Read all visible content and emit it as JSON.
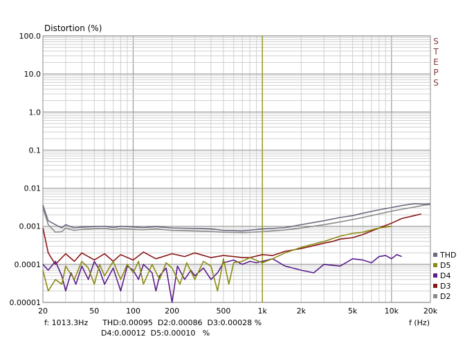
{
  "chart_data": {
    "type": "line",
    "ylabel": "Distortion (%)",
    "xlabel": "f (Hz)",
    "xscale": "log",
    "yscale": "log",
    "xlim": [
      20,
      20000
    ],
    "ylim": [
      1e-05,
      100
    ],
    "x_ticks": [
      {
        "v": 20,
        "label": "20"
      },
      {
        "v": 50,
        "label": "50"
      },
      {
        "v": 100,
        "label": "100"
      },
      {
        "v": 200,
        "label": "200"
      },
      {
        "v": 500,
        "label": "500"
      },
      {
        "v": 1000,
        "label": "1k"
      },
      {
        "v": 2000,
        "label": "2k"
      },
      {
        "v": 5000,
        "label": "5k"
      },
      {
        "v": 10000,
        "label": "10k"
      },
      {
        "v": 20000,
        "label": "20k"
      }
    ],
    "y_ticks": [
      {
        "v": 100,
        "label": "100.0"
      },
      {
        "v": 10,
        "label": "10.0"
      },
      {
        "v": 1,
        "label": "1.0"
      },
      {
        "v": 0.1,
        "label": "0.1"
      },
      {
        "v": 0.01,
        "label": "0.01"
      },
      {
        "v": 0.001,
        "label": "0.001"
      },
      {
        "v": 0.0001,
        "label": "0.0001"
      },
      {
        "v": 1e-05,
        "label": "0.00001"
      }
    ],
    "cursor_x": 1000,
    "cursor_color": "#9a9a20",
    "side_label": "STEPS",
    "series": [
      {
        "name": "THD",
        "color": "#6a6a80",
        "x": [
          20,
          22,
          25,
          28,
          30,
          35,
          40,
          50,
          60,
          70,
          80,
          100,
          120,
          150,
          200,
          300,
          400,
          500,
          700,
          1000,
          1500,
          2000,
          3000,
          4000,
          5000,
          6000,
          8000,
          10000,
          12000,
          15000,
          18000,
          20000
        ],
        "y": [
          0.0036,
          0.0014,
          0.0011,
          0.0009,
          0.0011,
          0.0009,
          0.00095,
          0.00098,
          0.001,
          0.00093,
          0.001,
          0.00096,
          0.00092,
          0.00098,
          0.0009,
          0.00088,
          0.00085,
          0.00078,
          0.00075,
          0.00085,
          0.00092,
          0.0011,
          0.0014,
          0.0017,
          0.0019,
          0.0022,
          0.0027,
          0.0031,
          0.0035,
          0.0039,
          0.0038,
          0.0039
        ]
      },
      {
        "name": "D5",
        "color": "#8a8a10",
        "x": [
          20,
          22,
          25,
          28,
          30,
          35,
          40,
          45,
          50,
          55,
          60,
          70,
          80,
          90,
          100,
          110,
          120,
          140,
          160,
          180,
          200,
          230,
          260,
          300,
          350,
          400,
          450,
          500,
          550,
          600,
          700,
          800,
          1000,
          1200,
          1500,
          2000,
          3000,
          4000,
          5000,
          6000,
          8000,
          10000
        ],
        "y": [
          7e-05,
          2e-05,
          4e-05,
          3e-05,
          9e-05,
          4e-05,
          0.00012,
          8e-05,
          3e-05,
          0.0001,
          5e-05,
          0.00012,
          4e-05,
          0.0001,
          6e-05,
          0.00012,
          3e-05,
          0.0001,
          4e-05,
          0.00011,
          8e-05,
          3e-05,
          0.00011,
          4e-05,
          0.00012,
          9e-05,
          2e-05,
          0.00014,
          3e-05,
          0.00011,
          0.00012,
          0.00015,
          0.00011,
          0.00014,
          0.0002,
          0.00028,
          0.0004,
          0.00055,
          0.00065,
          0.0007,
          0.0009,
          0.001
        ]
      },
      {
        "name": "D4",
        "color": "#5a1a8a",
        "x": [
          20,
          22,
          25,
          28,
          30,
          33,
          36,
          40,
          45,
          50,
          55,
          60,
          70,
          80,
          90,
          100,
          110,
          120,
          140,
          150,
          160,
          180,
          200,
          220,
          250,
          280,
          300,
          350,
          400,
          450,
          500,
          600,
          700,
          800,
          900,
          1000,
          1200,
          1500,
          2000,
          2500,
          3000,
          4000,
          5000,
          6000,
          7000,
          8000,
          9000,
          10000,
          11000,
          12000
        ],
        "y": [
          0.0001,
          7e-05,
          0.00012,
          5e-05,
          2e-05,
          6e-05,
          3e-05,
          9e-05,
          4e-05,
          0.00012,
          7e-05,
          3e-05,
          8e-05,
          2e-05,
          9e-05,
          7e-05,
          4e-05,
          0.0001,
          6e-05,
          2e-05,
          5e-05,
          8e-05,
          1e-05,
          9e-05,
          4e-05,
          7e-05,
          5e-05,
          8e-05,
          4e-05,
          6e-05,
          0.00011,
          0.00013,
          0.0001,
          0.00012,
          0.00011,
          0.00012,
          0.00014,
          9e-05,
          7e-05,
          6e-05,
          0.0001,
          9e-05,
          0.00014,
          0.00013,
          0.00011,
          0.00016,
          0.00017,
          0.00014,
          0.00018,
          0.00016
        ]
      },
      {
        "name": "D3",
        "color": "#8a1515",
        "x": [
          20,
          22,
          25,
          30,
          35,
          40,
          50,
          60,
          70,
          80,
          100,
          120,
          150,
          200,
          250,
          300,
          400,
          500,
          600,
          700,
          800,
          1000,
          1200,
          1500,
          2000,
          2500,
          3000,
          3500,
          4000,
          5000,
          6000,
          7000,
          8000,
          10000,
          12000,
          15000,
          17000
        ],
        "y": [
          0.0009,
          0.0002,
          0.0001,
          0.00019,
          0.00012,
          0.0002,
          0.00013,
          0.00019,
          0.00012,
          0.00018,
          0.00013,
          0.00021,
          0.00014,
          0.00019,
          0.00016,
          0.0002,
          0.00015,
          0.00017,
          0.00016,
          0.00015,
          0.00015,
          0.00018,
          0.00017,
          0.00022,
          0.00026,
          0.00031,
          0.00036,
          0.0004,
          0.00046,
          0.0005,
          0.00061,
          0.00075,
          0.0009,
          0.0012,
          0.0016,
          0.0019,
          0.0021
        ]
      },
      {
        "name": "D2",
        "color": "#8a8a8a",
        "x": [
          20,
          22,
          25,
          28,
          30,
          35,
          40,
          50,
          60,
          70,
          80,
          100,
          120,
          150,
          200,
          300,
          400,
          500,
          700,
          1000,
          1500,
          2000,
          3000,
          4000,
          5000,
          6000,
          8000,
          10000,
          12000,
          15000,
          18000,
          20000
        ],
        "y": [
          0.003,
          0.0011,
          0.0007,
          0.00072,
          0.0009,
          0.00078,
          0.00083,
          0.00086,
          0.00088,
          0.00082,
          0.00086,
          0.00083,
          0.00081,
          0.00085,
          0.00078,
          0.00075,
          0.00073,
          0.0007,
          0.00068,
          0.00072,
          0.0008,
          0.0009,
          0.0011,
          0.0013,
          0.0015,
          0.0017,
          0.0021,
          0.0025,
          0.0028,
          0.0032,
          0.0036,
          0.0037
        ]
      }
    ]
  },
  "readout": {
    "line1": "f: 1013.3Hz      THD:0.00095  D2:0.00086  D3:0.00028 %",
    "line2": "D4:0.00012  D5:0.00010   %"
  }
}
